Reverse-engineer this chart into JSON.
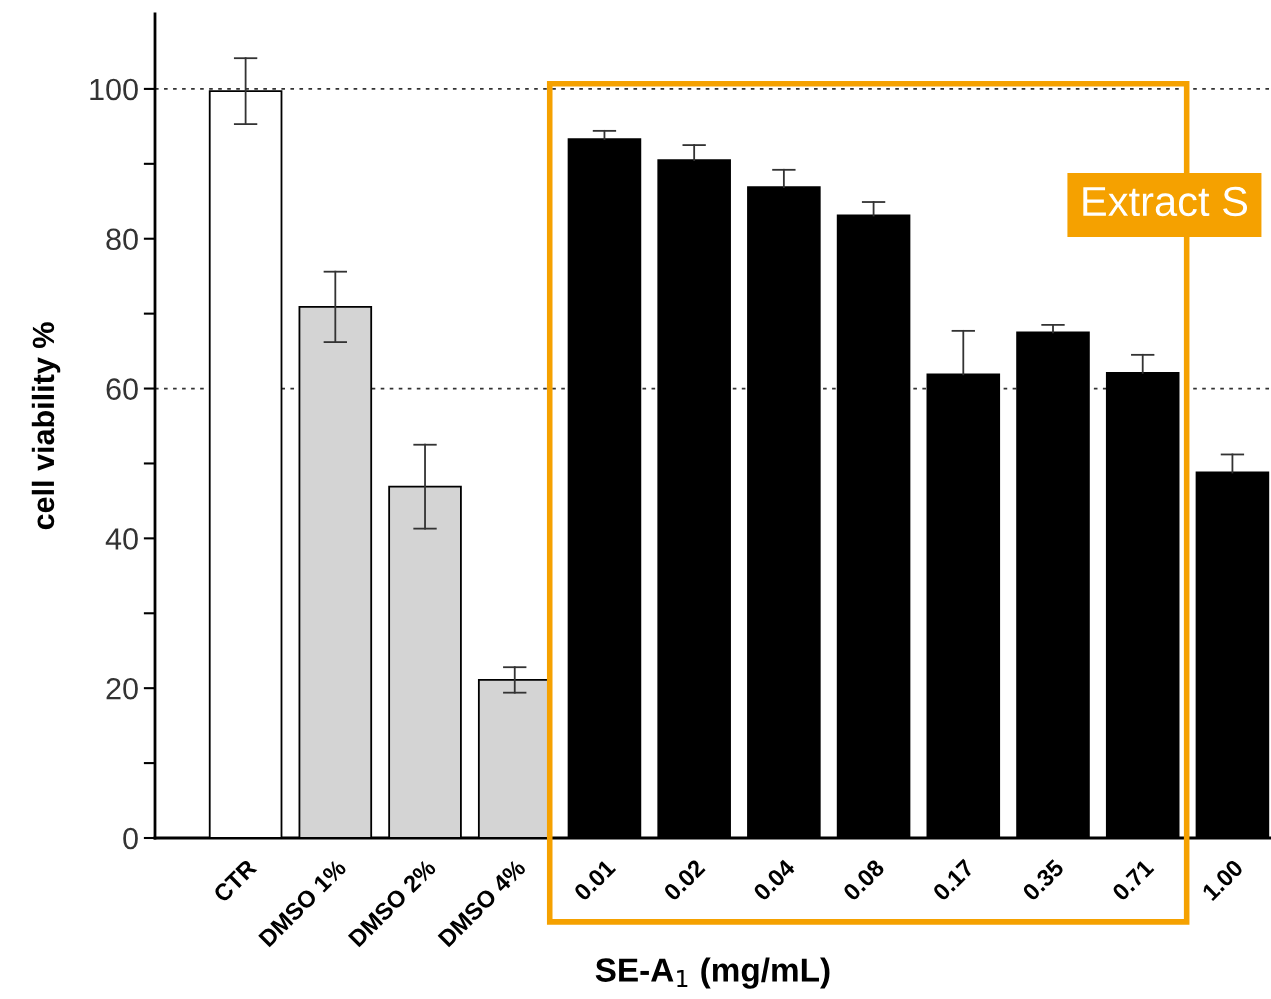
{
  "chart_data": {
    "type": "bar",
    "categories": [
      "CTR",
      "DMSO 1%",
      "DMSO 2%",
      "DMSO 4%",
      "0.01",
      "0.02",
      "0.04",
      "0.08",
      "0.17",
      "0.35",
      "0.71",
      "1.00"
    ],
    "values": [
      99.7,
      70.9,
      46.9,
      21.1,
      93.3,
      90.5,
      86.9,
      83.1,
      61.9,
      67.5,
      62.1,
      48.8
    ],
    "colors": [
      "#ffffff",
      "#d4d4d4",
      "#d4d4d4",
      "#d4d4d4",
      "#000000",
      "#000000",
      "#000000",
      "#000000",
      "#000000",
      "#000000",
      "#000000",
      "#000000"
    ],
    "errors": [
      4.4,
      4.7,
      5.6,
      1.7,
      [
        93.3,
        94.4
      ],
      [
        90.5,
        92.5
      ],
      [
        86.9,
        89.2
      ],
      [
        83.1,
        84.9
      ],
      [
        61.9,
        67.7
      ],
      [
        67.5,
        68.5
      ],
      [
        62.1,
        64.5
      ],
      [
        48.8,
        51.2
      ]
    ],
    "xlabel": "SE-A$_{1}$ (mg/mL)",
    "ylabel": "cell viability %",
    "ylim": [
      0,
      110
    ],
    "yticks": [
      0,
      {
        "value": 10,
        "label": null
      },
      20,
      {
        "value": 30,
        "label": null
      },
      40,
      {
        "value": 50,
        "label": null
      },
      60,
      {
        "value": 70,
        "label": null
      },
      80,
      {
        "value": 90,
        "label": null
      },
      100
    ],
    "ref_lines": [
      {
        "axis": "y",
        "value": 100,
        "line_style": "dotted"
      },
      {
        "axis": "y",
        "value": 60,
        "line_style": "dotted"
      }
    ],
    "annotations": [
      "Extract S"
    ],
    "grid": false,
    "legend": false
  }
}
